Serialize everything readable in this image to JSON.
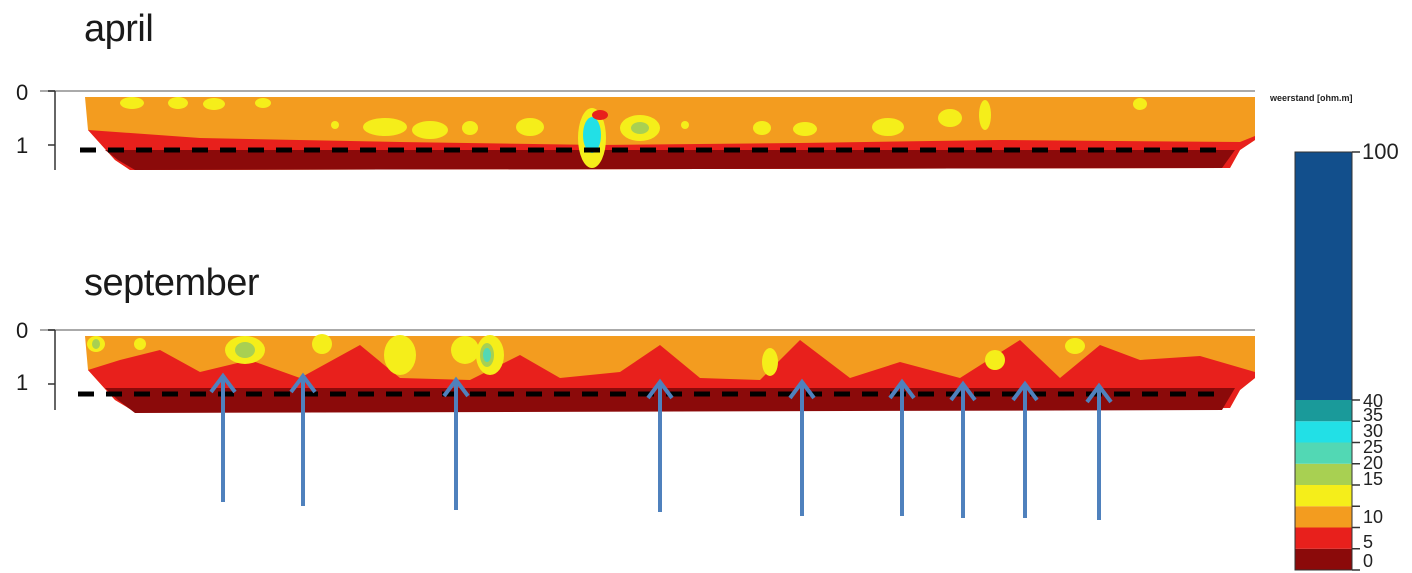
{
  "chart_data": {
    "type": "heatmap",
    "panels": [
      {
        "title": "april",
        "depth_ticks": [
          "0",
          "1"
        ]
      },
      {
        "title": "september",
        "depth_ticks": [
          "0",
          "1"
        ]
      }
    ],
    "depth_range": [
      0,
      1.4
    ],
    "legend": {
      "title": "weerstand [ohm.m]",
      "breaks": [
        0,
        5,
        10,
        15,
        20,
        25,
        30,
        35,
        40,
        100
      ],
      "labels": [
        "100",
        "40",
        "35",
        "30",
        "25",
        "20",
        "15",
        "10",
        "5",
        "0"
      ],
      "colors": [
        "#8b0a0a",
        "#e8201c",
        "#f39c1f",
        "#f5ee1a",
        "#a8d052",
        "#52d8b4",
        "#22e0e6",
        "#1a9a9a",
        "#124f8c"
      ]
    },
    "arrows_september_count": 9
  }
}
